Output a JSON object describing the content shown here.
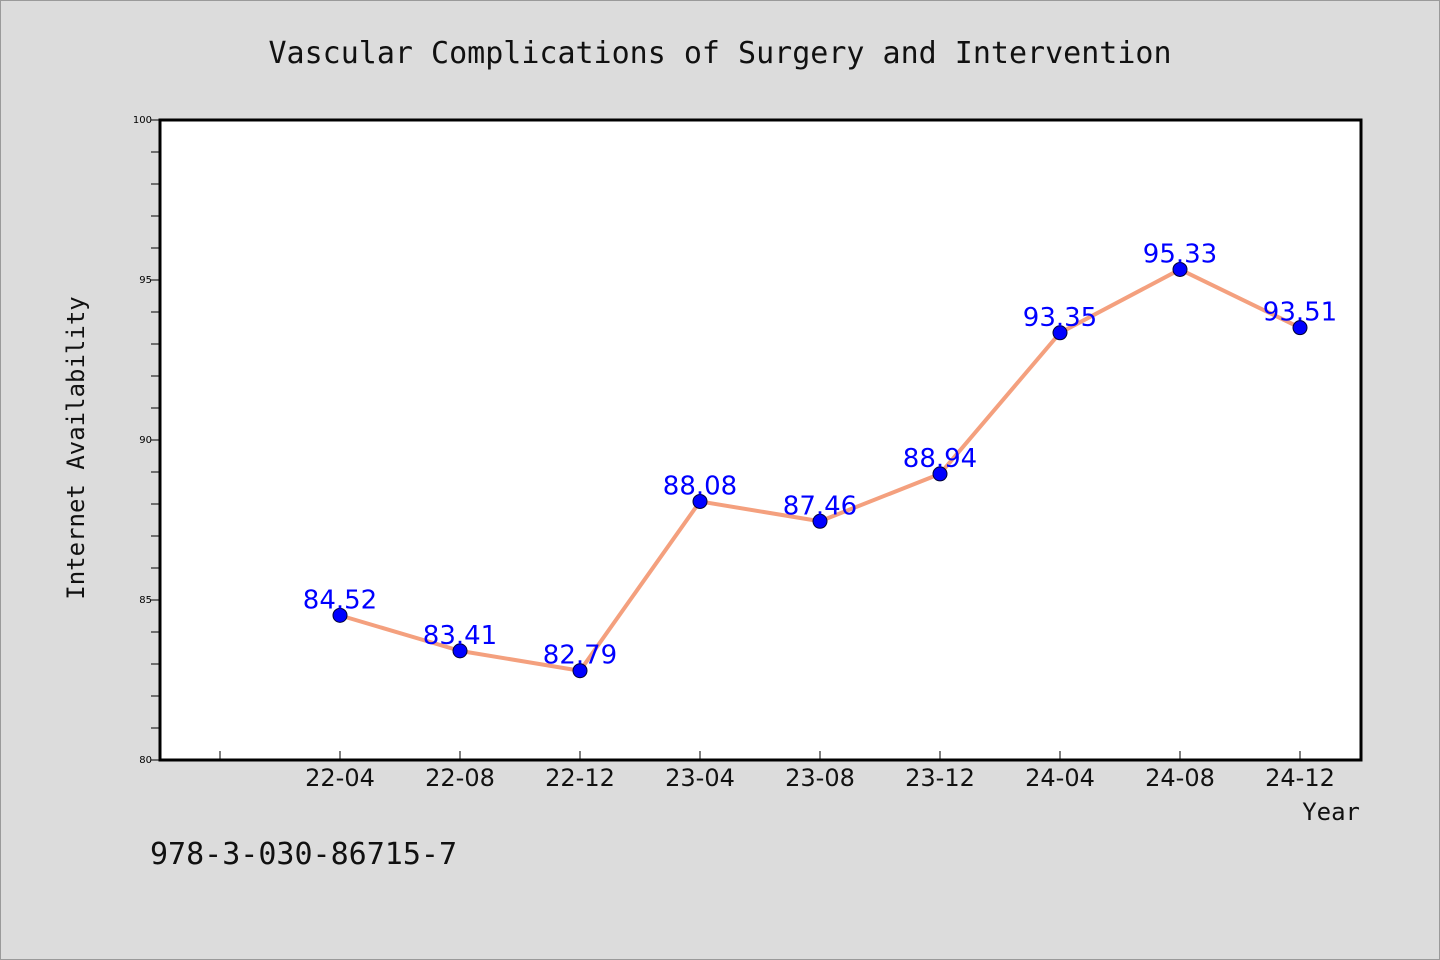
{
  "chart_data": {
    "type": "line",
    "title": "Vascular Complications of Surgery and Intervention",
    "xlabel": "Year",
    "ylabel": "Internet Availability",
    "categories": [
      "22-04",
      "22-08",
      "22-12",
      "23-04",
      "23-08",
      "23-12",
      "24-04",
      "24-08",
      "24-12"
    ],
    "series": [
      {
        "values": [
          84.52,
          83.41,
          82.79,
          88.08,
          87.46,
          88.94,
          93.35,
          95.33,
          93.51
        ],
        "labels": [
          "84.52",
          "83.41",
          "82.79",
          "88.08",
          "87.46",
          "88.94",
          "93.35",
          "95.33",
          "93.51"
        ],
        "line_color": "#f4a07e",
        "marker_color": "#0000ff"
      }
    ],
    "ylim": [
      80,
      100
    ],
    "yticks": [
      80,
      85,
      90,
      95,
      100
    ],
    "ytick_labels": [
      "80",
      "85",
      "90",
      "95",
      "100"
    ],
    "grid": false,
    "legend": "none"
  },
  "footer": {
    "isbn": "978-3-030-86715-7"
  },
  "colors": {
    "background": "#dcdcdc",
    "plot_background": "#ffffff",
    "line": "#f4a07e",
    "marker": "#0000ff",
    "data_label": "#0000ff"
  }
}
